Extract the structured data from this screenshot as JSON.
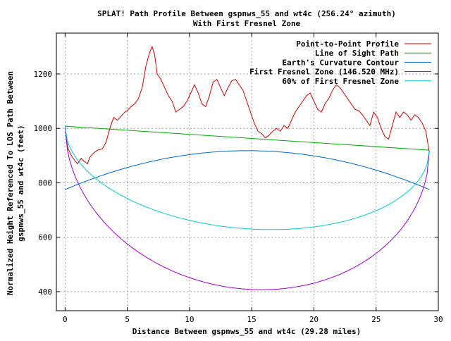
{
  "chart_data": {
    "type": "line",
    "title": "SPLAT! Path Profile Between gspnws_55 and wt4c (256.24° azimuth)",
    "subtitle": "With First Fresnel Zone",
    "xlabel": "Distance Between gspnws_55 and wt4c (29.28 miles)",
    "ylabel_line1": "Normalized Height Referenced To LOS Path Between",
    "ylabel_line2": "gspnws_55 and wt4c (feet)",
    "xlim": [
      -0.7,
      30
    ],
    "ylim": [
      330,
      1350
    ],
    "xticks": [
      0,
      5,
      10,
      15,
      20,
      25,
      30
    ],
    "yticks": [
      400,
      600,
      800,
      1000,
      1200
    ],
    "xtick_labels": [
      "0",
      "5",
      "10",
      "15",
      "20",
      "25",
      "30"
    ],
    "ytick_labels": [
      "400",
      "600",
      "800",
      "1000",
      "1200"
    ],
    "grid": true,
    "legend_position": "top-right",
    "series": [
      {
        "name": "Point-to-Point Profile",
        "color": "#cc0000",
        "points": [
          [
            0,
            1005
          ],
          [
            0.2,
            930
          ],
          [
            0.5,
            900
          ],
          [
            0.8,
            880
          ],
          [
            1.0,
            870
          ],
          [
            1.3,
            890
          ],
          [
            1.5,
            880
          ],
          [
            1.8,
            870
          ],
          [
            2.0,
            895
          ],
          [
            2.3,
            910
          ],
          [
            2.6,
            920
          ],
          [
            3.0,
            925
          ],
          [
            3.3,
            950
          ],
          [
            3.6,
            1000
          ],
          [
            3.9,
            1040
          ],
          [
            4.2,
            1030
          ],
          [
            4.5,
            1045
          ],
          [
            4.8,
            1060
          ],
          [
            5.0,
            1065
          ],
          [
            5.3,
            1080
          ],
          [
            5.6,
            1090
          ],
          [
            5.9,
            1110
          ],
          [
            6.2,
            1150
          ],
          [
            6.5,
            1230
          ],
          [
            6.8,
            1280
          ],
          [
            7.0,
            1300
          ],
          [
            7.2,
            1270
          ],
          [
            7.4,
            1200
          ],
          [
            7.7,
            1180
          ],
          [
            8.0,
            1150
          ],
          [
            8.3,
            1120
          ],
          [
            8.6,
            1100
          ],
          [
            8.9,
            1060
          ],
          [
            9.2,
            1070
          ],
          [
            9.5,
            1080
          ],
          [
            9.8,
            1100
          ],
          [
            10.1,
            1130
          ],
          [
            10.4,
            1160
          ],
          [
            10.7,
            1130
          ],
          [
            11.0,
            1090
          ],
          [
            11.3,
            1080
          ],
          [
            11.6,
            1120
          ],
          [
            11.9,
            1170
          ],
          [
            12.2,
            1180
          ],
          [
            12.5,
            1150
          ],
          [
            12.8,
            1120
          ],
          [
            13.1,
            1150
          ],
          [
            13.4,
            1175
          ],
          [
            13.7,
            1180
          ],
          [
            14.0,
            1160
          ],
          [
            14.3,
            1140
          ],
          [
            14.6,
            1100
          ],
          [
            14.9,
            1060
          ],
          [
            15.2,
            1020
          ],
          [
            15.5,
            990
          ],
          [
            15.8,
            980
          ],
          [
            16.1,
            965
          ],
          [
            16.4,
            975
          ],
          [
            16.7,
            990
          ],
          [
            17.0,
            1000
          ],
          [
            17.3,
            990
          ],
          [
            17.6,
            1010
          ],
          [
            17.9,
            1000
          ],
          [
            18.2,
            1030
          ],
          [
            18.5,
            1060
          ],
          [
            18.8,
            1080
          ],
          [
            19.1,
            1100
          ],
          [
            19.4,
            1120
          ],
          [
            19.7,
            1130
          ],
          [
            20.0,
            1100
          ],
          [
            20.3,
            1070
          ],
          [
            20.6,
            1060
          ],
          [
            20.9,
            1090
          ],
          [
            21.2,
            1110
          ],
          [
            21.5,
            1140
          ],
          [
            21.8,
            1160
          ],
          [
            22.1,
            1150
          ],
          [
            22.4,
            1130
          ],
          [
            22.7,
            1110
          ],
          [
            23.0,
            1090
          ],
          [
            23.3,
            1070
          ],
          [
            23.6,
            1065
          ],
          [
            23.9,
            1050
          ],
          [
            24.2,
            1030
          ],
          [
            24.5,
            1010
          ],
          [
            24.8,
            1060
          ],
          [
            25.1,
            1040
          ],
          [
            25.4,
            1000
          ],
          [
            25.7,
            970
          ],
          [
            26.0,
            960
          ],
          [
            26.3,
            1010
          ],
          [
            26.6,
            1060
          ],
          [
            26.9,
            1040
          ],
          [
            27.2,
            1060
          ],
          [
            27.5,
            1050
          ],
          [
            27.8,
            1030
          ],
          [
            28.1,
            1050
          ],
          [
            28.4,
            1040
          ],
          [
            28.7,
            1020
          ],
          [
            29.0,
            990
          ],
          [
            29.28,
            910
          ]
        ]
      },
      {
        "name": "Line of Sight Path",
        "color": "#00aa00",
        "points": [
          [
            0,
            1008
          ],
          [
            29.28,
            920
          ]
        ]
      },
      {
        "name": "Earth's Curvature Contour",
        "color": "#0066cc",
        "fn": "curvature",
        "ends": 775,
        "peak": 918
      },
      {
        "name": "First Fresnel Zone (146.520 MHz)",
        "color": "#9900cc",
        "fn": "fresnel",
        "depth": 555
      },
      {
        "name": "60% of First Fresnel Zone",
        "color": "#00cccc",
        "fn": "fresnel",
        "depth": 333
      }
    ]
  }
}
